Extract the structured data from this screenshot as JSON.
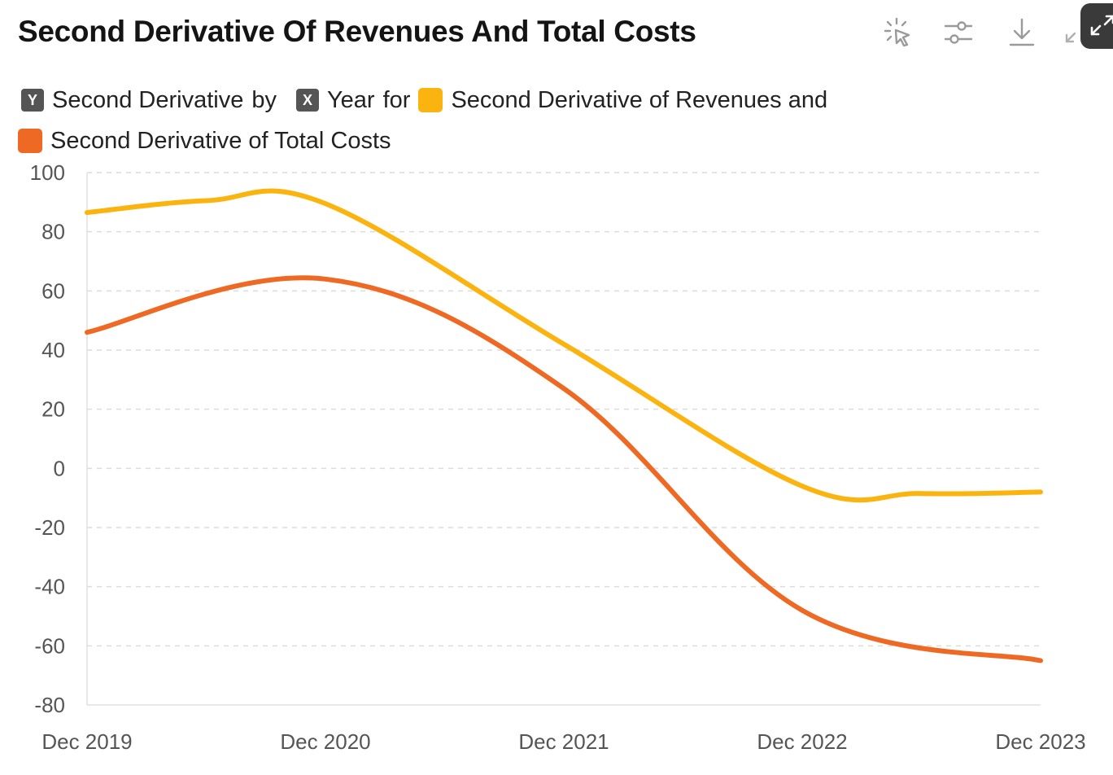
{
  "title": "Second Derivative Of Revenues And Total Costs",
  "toolbar": {
    "icons": [
      "sparkle-cursor-icon",
      "sliders-icon",
      "download-icon",
      "collapse-icon"
    ]
  },
  "legend": {
    "y_key": "Y",
    "y_text": "Second Derivative",
    "by_text": "by",
    "x_key": "X",
    "x_text": "Year",
    "for_text": "for",
    "series_1_text": "Second Derivative of Revenues and",
    "series_2_text": "Second Derivative of Total Costs"
  },
  "colors": {
    "revenues": "#FBB40F",
    "total_costs": "#EE6A24",
    "grid": "#dcdcdc",
    "axis": "#e0e0e0"
  },
  "chart_data": {
    "type": "line",
    "title": "Second Derivative Of Revenues And Total Costs",
    "categories": [
      "Dec 2019",
      "Dec 2020",
      "Dec 2021",
      "Dec 2022",
      "Dec 2023"
    ],
    "y_ticks": [
      "100",
      "80",
      "60",
      "40",
      "20",
      "0",
      "-20",
      "-40",
      "-60",
      "-80"
    ],
    "ylim": [
      -80,
      100
    ],
    "grid": true,
    "legend_position": "top-left",
    "series": [
      {
        "name": "Second Derivative of Revenues",
        "color": "#FBB40F",
        "points": [
          {
            "x": "Dec 2019",
            "y": 86.5
          },
          {
            "x": "Mid 2020",
            "y": 90.5
          },
          {
            "x": "Dec 2020",
            "y": 89.5
          },
          {
            "x": "Dec 2021",
            "y": 42
          },
          {
            "x": "Dec 2022",
            "y": -6
          },
          {
            "x": "Jun 2023",
            "y": -8.5
          },
          {
            "x": "Dec 2023",
            "y": -8
          }
        ]
      },
      {
        "name": "Second Derivative of Total Costs",
        "color": "#EE6A24",
        "points": [
          {
            "x": "Dec 2019",
            "y": 46
          },
          {
            "x": "Dec 2020",
            "y": 64
          },
          {
            "x": "Dec 2021",
            "y": 27
          },
          {
            "x": "Dec 2022",
            "y": -48
          },
          {
            "x": "Dec 2023",
            "y": -65
          }
        ]
      }
    ]
  }
}
